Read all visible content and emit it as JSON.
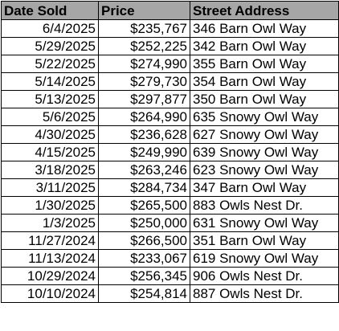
{
  "table": {
    "headers": [
      "Date Sold",
      "Price",
      "Street Address"
    ],
    "header_bg": "#a6a6a6",
    "rows": [
      [
        "6/4/2025",
        "$235,767",
        "346 Barn Owl Way"
      ],
      [
        "5/29/2025",
        "$252,225",
        "342 Barn Owl Way"
      ],
      [
        "5/22/2025",
        "$274,990",
        "355 Barn Owl Way"
      ],
      [
        "5/14/2025",
        "$279,730",
        "354 Barn Owl Way"
      ],
      [
        "5/13/2025",
        "$297,877",
        "350 Barn Owl Way"
      ],
      [
        "5/6/2025",
        "$264,990",
        "635 Snowy Owl Way"
      ],
      [
        "4/30/2025",
        "$236,628",
        "627 Snowy Owl Way"
      ],
      [
        "4/15/2025",
        "$249,990",
        "639 Snowy Owl Way"
      ],
      [
        "3/18/2025",
        "$263,246",
        "623 Snowy Owl Way"
      ],
      [
        "3/11/2025",
        "$284,734",
        "347 Barn Owl Way"
      ],
      [
        "1/30/2025",
        "$265,500",
        "883 Owls Nest Dr."
      ],
      [
        "1/3/2025",
        "$250,000",
        "631 Snowy Owl Way"
      ],
      [
        "11/27/2024",
        "$266,500",
        "351 Barn Owl Way"
      ],
      [
        "11/13/2024",
        "$233,067",
        "619 Snowy Owl Way"
      ],
      [
        "10/29/2024",
        "$256,345",
        "906 Owls Nest Dr."
      ],
      [
        "10/10/2024",
        "$254,814",
        "887 Owls Nest Dr."
      ]
    ]
  }
}
